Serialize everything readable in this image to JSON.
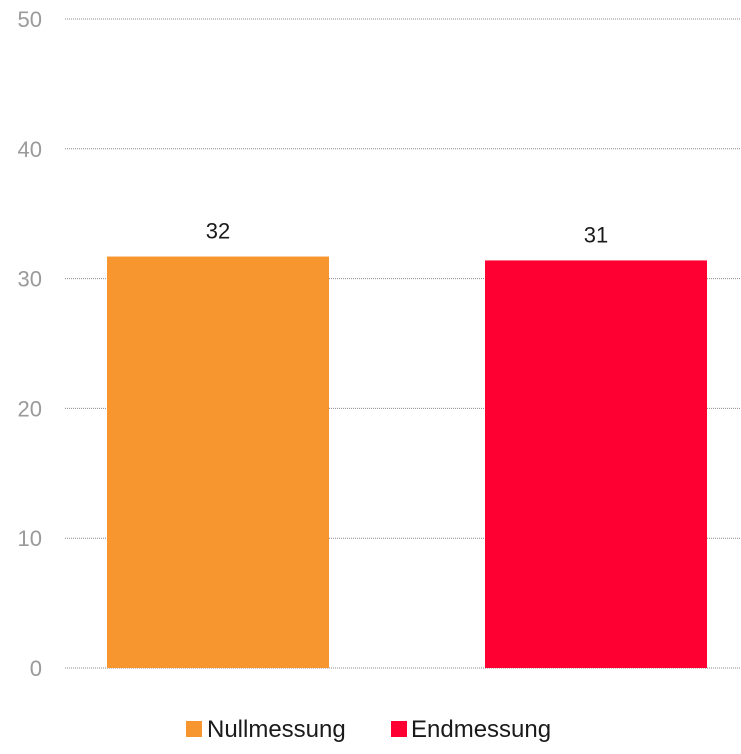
{
  "chart_data": {
    "type": "bar",
    "title": "",
    "xlabel": "",
    "ylabel": "",
    "ylim": [
      0,
      50
    ],
    "yticks": [
      0,
      10,
      20,
      30,
      40,
      50
    ],
    "grid": true,
    "legend_position": "bottom",
    "categories": [
      "Nullmessung",
      "Endmessung"
    ],
    "series": [
      {
        "values": [
          31.7,
          31.4
        ],
        "data_labels": [
          "32",
          "31"
        ],
        "colors": [
          "#F7952F",
          "#FF0033"
        ]
      }
    ],
    "legend": [
      {
        "label": "Nullmessung",
        "color": "#F7952F"
      },
      {
        "label": "Endmessung",
        "color": "#FF0033"
      }
    ]
  }
}
